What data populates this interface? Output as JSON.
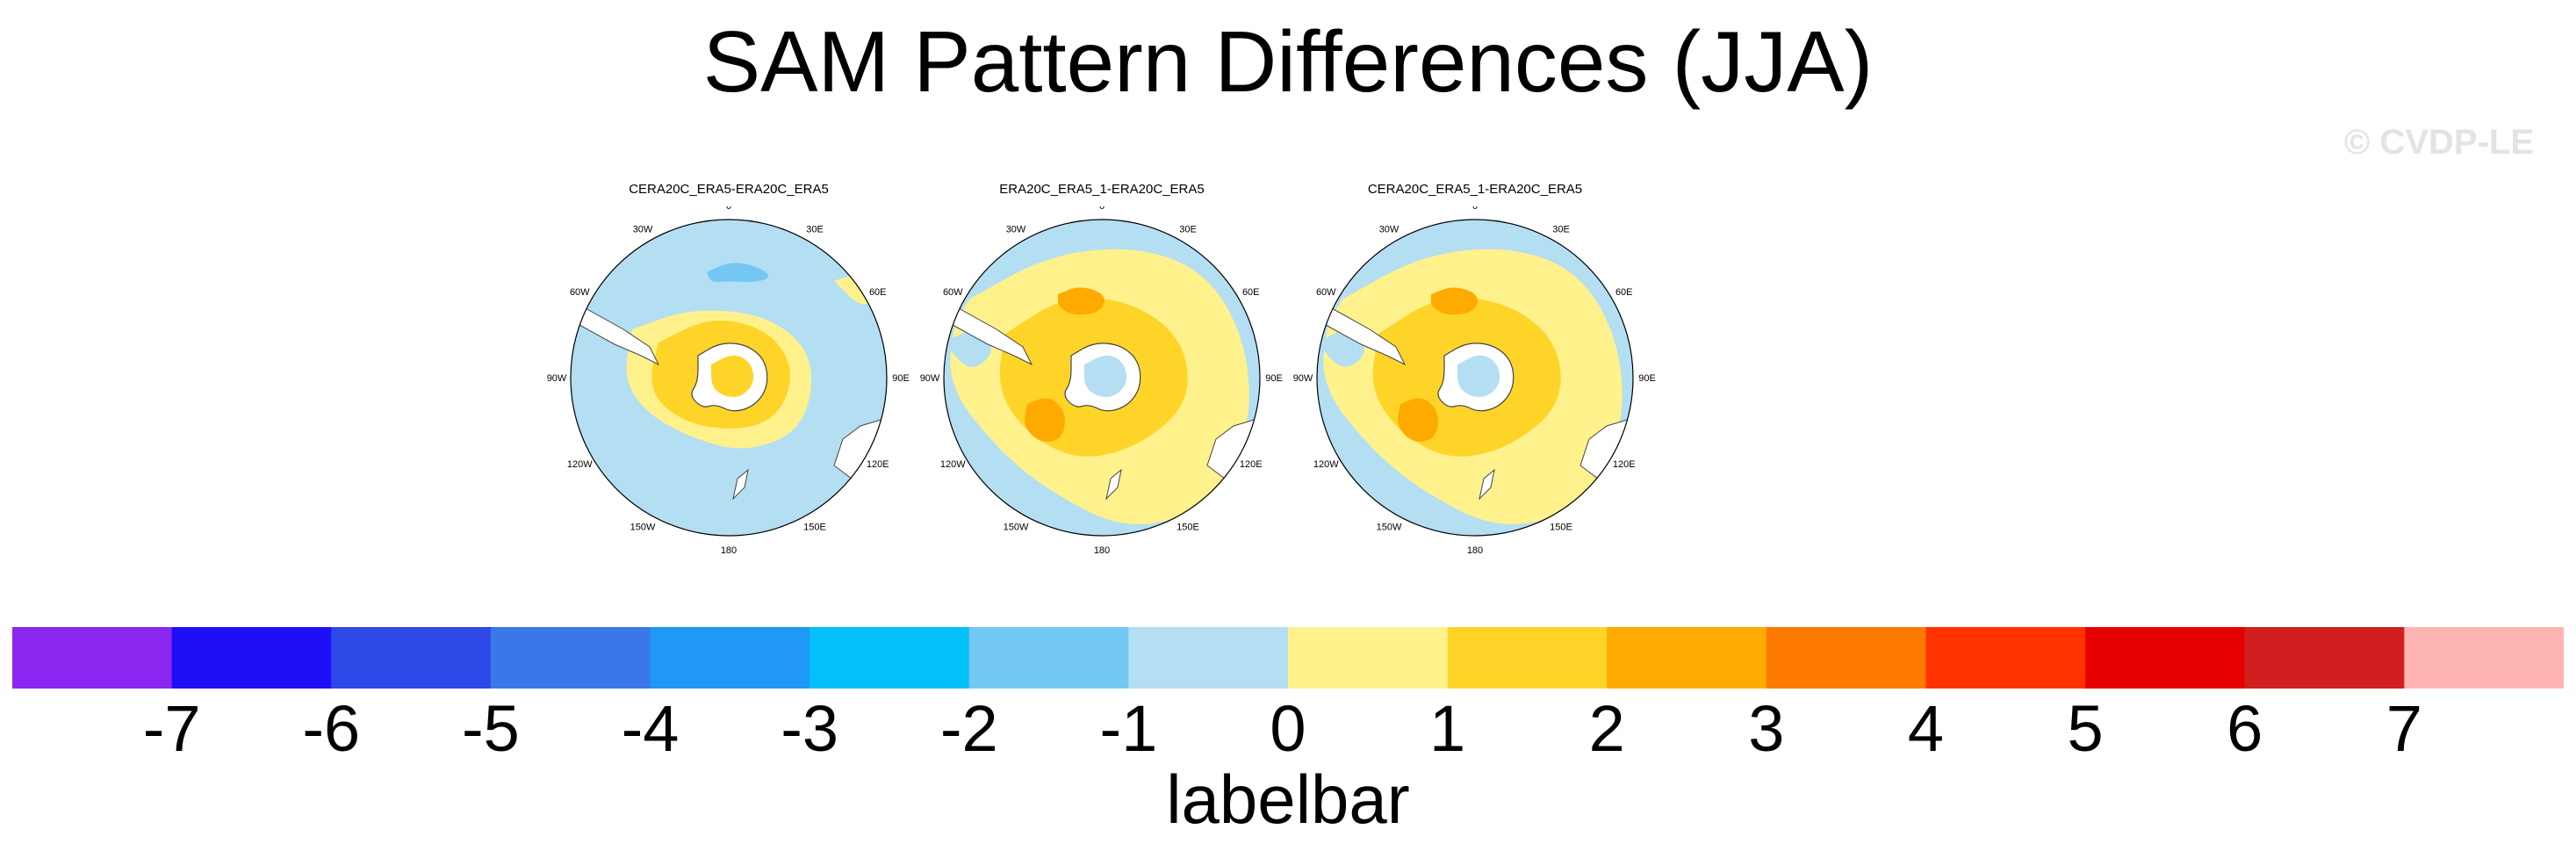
{
  "title": "SAM Pattern Differences (JJA)",
  "copyright": "© CVDP-LE",
  "panels": [
    {
      "title": "CERA20C_ERA5-ERA20C_ERA5",
      "variant": 0
    },
    {
      "title": "ERA20C_ERA5_1-ERA20C_ERA5",
      "variant": 1
    },
    {
      "title": "CERA20C_ERA5_1-ERA20C_ERA5",
      "variant": 2
    }
  ],
  "lon_labels": [
    "0",
    "30E",
    "60E",
    "90E",
    "120E",
    "150E",
    "180",
    "150W",
    "120W",
    "90W",
    "60W",
    "30W"
  ],
  "labelbar": {
    "title": "labelbar",
    "ticks": [
      "-7",
      "-6",
      "-5",
      "-4",
      "-3",
      "-2",
      "-1",
      "0",
      "1",
      "2",
      "3",
      "4",
      "5",
      "6",
      "7"
    ],
    "colors": [
      "#8a26f0",
      "#1e10f6",
      "#2f48e8",
      "#3a78ea",
      "#1f98f6",
      "#04c0f8",
      "#72c8f2",
      "#b4def2",
      "#fff28c",
      "#ffd428",
      "#ffaa00",
      "#ff7a00",
      "#ff3200",
      "#e60000",
      "#d21e1e",
      "#ffb4b4"
    ]
  }
}
